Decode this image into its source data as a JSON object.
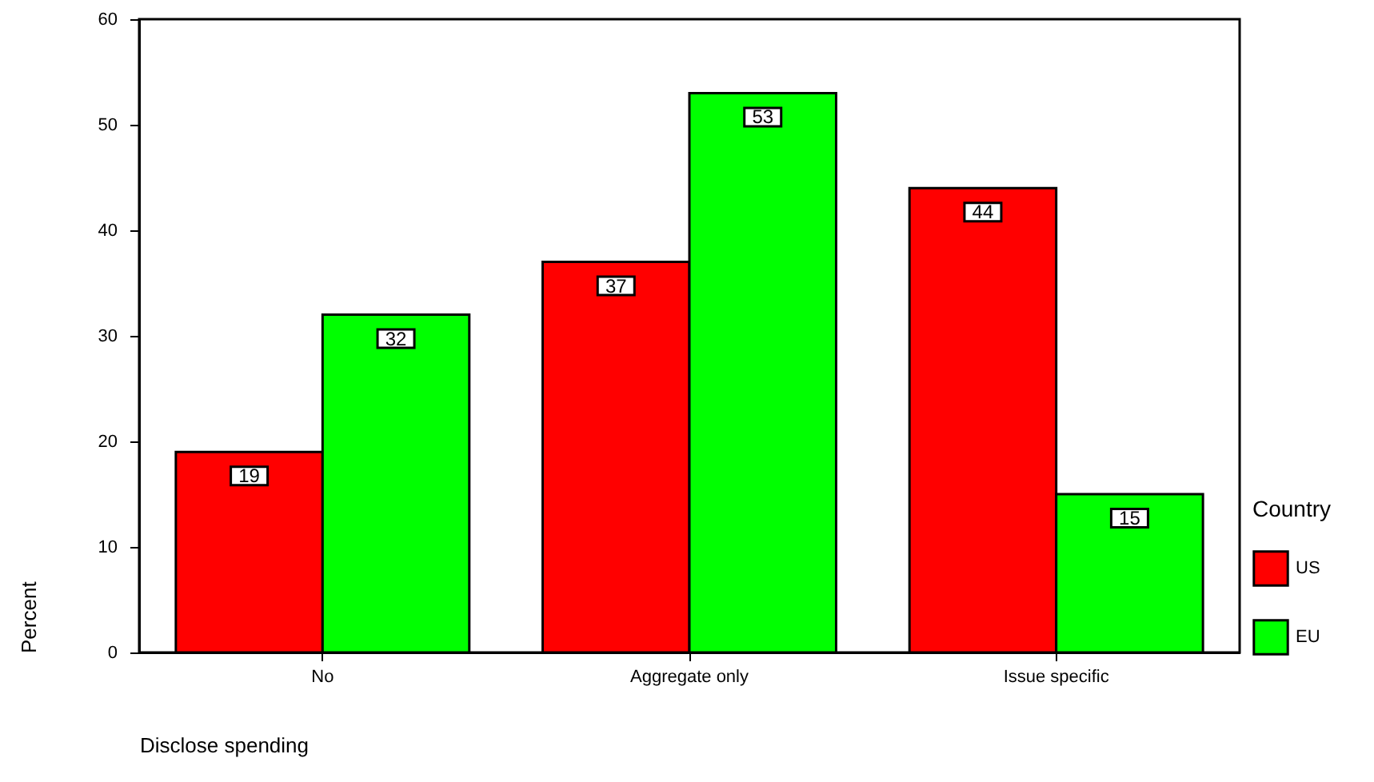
{
  "chart_data": {
    "type": "bar",
    "xlabel": "Disclose spending",
    "ylabel": "Percent",
    "legend_title": "Country",
    "categories": [
      "No",
      "Aggregate only",
      "Issue specific"
    ],
    "series": [
      {
        "name": "US",
        "color": "#ff0000",
        "values": [
          19,
          37,
          44
        ]
      },
      {
        "name": "EU",
        "color": "#00ff00",
        "values": [
          32,
          53,
          15
        ]
      }
    ],
    "ylim": [
      0,
      60
    ],
    "yticks": [
      0,
      10,
      20,
      30,
      40,
      50,
      60
    ],
    "data_labels": true,
    "legend": "right",
    "grid": false
  }
}
